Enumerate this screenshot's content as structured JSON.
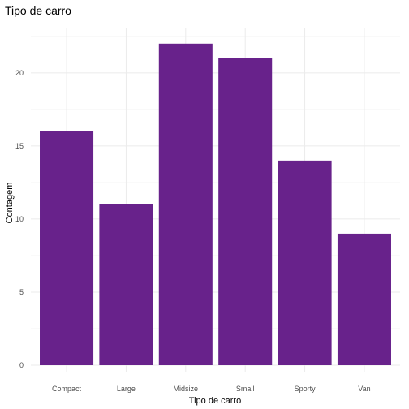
{
  "chart_data": {
    "type": "bar",
    "title": "Tipo de carro",
    "xlabel": "Tipo de carro",
    "ylabel": "Contagem",
    "categories": [
      "Compact",
      "Large",
      "Midsize",
      "Small",
      "Sporty",
      "Van"
    ],
    "values": [
      16,
      11,
      22,
      21,
      14,
      9
    ],
    "ylim": [
      0,
      23.1
    ],
    "yticks": [
      0,
      5,
      10,
      15,
      20
    ],
    "ytick_labels": [
      "0",
      "5",
      "10",
      "15",
      "20"
    ],
    "grid": true,
    "bar_color": "#68228b",
    "theme": "minimal"
  }
}
